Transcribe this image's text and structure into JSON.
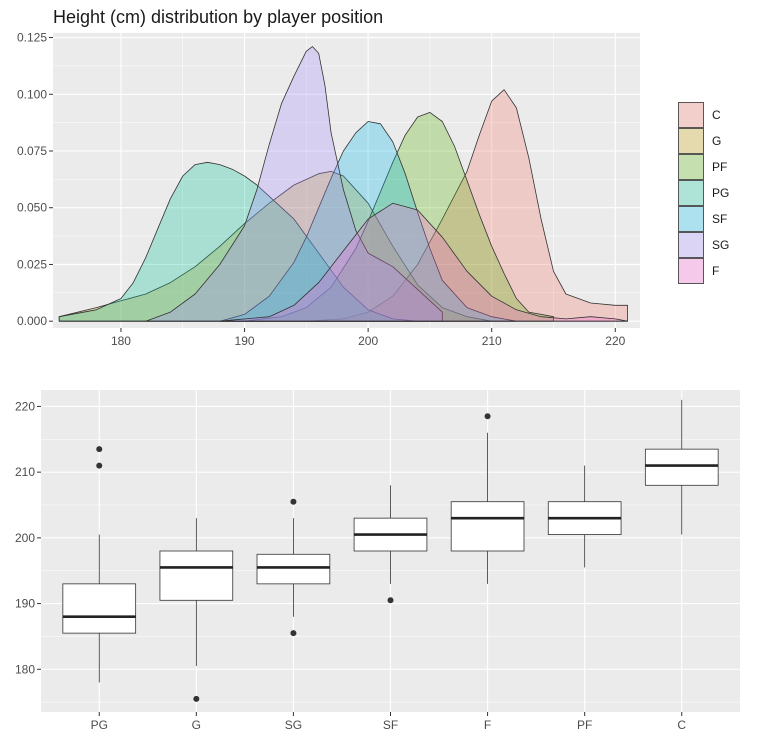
{
  "chart_data": [
    {
      "type": "area",
      "subtype": "density",
      "title": "Height (cm) distribution by player position",
      "xlabel": "",
      "ylabel": "",
      "xlim": [
        174.5,
        222
      ],
      "ylim": [
        -0.003,
        0.127
      ],
      "x_ticks": [
        180,
        190,
        200,
        210,
        220
      ],
      "y_ticks": [
        0.0,
        0.025,
        0.05,
        0.075,
        0.1,
        0.125
      ],
      "y_tick_labels": [
        "0.000",
        "0.025",
        "0.050",
        "0.075",
        "0.100",
        "0.125"
      ],
      "grid": true,
      "legend": "right",
      "fill_opacity": 0.28,
      "series": [
        {
          "name": "C",
          "color": "#F8766D",
          "x": [
            175,
            180,
            185,
            190,
            195,
            198,
            200,
            202,
            204,
            206,
            208,
            209,
            210,
            211,
            212,
            213,
            214,
            215,
            216,
            218,
            220,
            221
          ],
          "y": [
            0,
            0,
            0,
            0,
            0,
            0.001,
            0.004,
            0.011,
            0.025,
            0.045,
            0.066,
            0.082,
            0.097,
            0.102,
            0.094,
            0.072,
            0.045,
            0.022,
            0.012,
            0.008,
            0.007,
            0.007
          ]
        },
        {
          "name": "G",
          "color": "#C49A00",
          "x": [
            175,
            178,
            180,
            182,
            184,
            186,
            188,
            190,
            192,
            194,
            196,
            197,
            198,
            200,
            202,
            204,
            206,
            208,
            210
          ],
          "y": [
            0.002,
            0.006,
            0.009,
            0.012,
            0.017,
            0.024,
            0.033,
            0.043,
            0.052,
            0.06,
            0.065,
            0.066,
            0.064,
            0.052,
            0.033,
            0.016,
            0.006,
            0.002,
            0
          ]
        },
        {
          "name": "PF",
          "color": "#53B400",
          "x": [
            190,
            193,
            195,
            197,
            199,
            200,
            201,
            202,
            203,
            204,
            205,
            206,
            207,
            208,
            209,
            210,
            211,
            212,
            213,
            215
          ],
          "y": [
            0,
            0.002,
            0.006,
            0.015,
            0.032,
            0.044,
            0.057,
            0.07,
            0.082,
            0.09,
            0.092,
            0.088,
            0.077,
            0.062,
            0.047,
            0.033,
            0.021,
            0.01,
            0.004,
            0.002
          ]
        },
        {
          "name": "PG",
          "color": "#00C094",
          "x": [
            175,
            178,
            180,
            181,
            182,
            183,
            184,
            185,
            186,
            187,
            188,
            189,
            190,
            191,
            192,
            194,
            196,
            198,
            200,
            202,
            204
          ],
          "y": [
            0.002,
            0.005,
            0.01,
            0.017,
            0.028,
            0.041,
            0.054,
            0.064,
            0.069,
            0.07,
            0.069,
            0.067,
            0.064,
            0.06,
            0.055,
            0.045,
            0.03,
            0.015,
            0.005,
            0.001,
            0
          ]
        },
        {
          "name": "SF",
          "color": "#00B6EB",
          "x": [
            188,
            190,
            192,
            194,
            195,
            196,
            197,
            198,
            199,
            200,
            201,
            202,
            203,
            204,
            205,
            206,
            208,
            210,
            212
          ],
          "y": [
            0,
            0.003,
            0.011,
            0.026,
            0.037,
            0.05,
            0.063,
            0.075,
            0.083,
            0.088,
            0.087,
            0.079,
            0.065,
            0.048,
            0.032,
            0.018,
            0.006,
            0.002,
            0
          ]
        },
        {
          "name": "SG",
          "color": "#A58AFF",
          "x": [
            182,
            184,
            186,
            188,
            190,
            191,
            192,
            193,
            194,
            195,
            195.5,
            196,
            196.5,
            197,
            198,
            199,
            200,
            202,
            204,
            206
          ],
          "y": [
            0,
            0.004,
            0.012,
            0.025,
            0.042,
            0.058,
            0.078,
            0.096,
            0.108,
            0.119,
            0.121,
            0.118,
            0.104,
            0.083,
            0.058,
            0.04,
            0.03,
            0.024,
            0.014,
            0.004
          ]
        },
        {
          "name": "F",
          "color": "#FB61D7",
          "x": [
            188,
            192,
            194,
            196,
            198,
            200,
            202,
            204,
            206,
            208,
            210,
            212,
            214,
            216,
            218,
            220,
            221
          ],
          "y": [
            0,
            0.002,
            0.007,
            0.017,
            0.031,
            0.045,
            0.052,
            0.049,
            0.037,
            0.022,
            0.011,
            0.005,
            0.002,
            0.001,
            0.002,
            0.001,
            0
          ]
        }
      ]
    },
    {
      "type": "box",
      "title": "",
      "xlabel": "",
      "ylabel": "",
      "ylim": [
        173.5,
        222.5
      ],
      "y_ticks": [
        180,
        190,
        200,
        210,
        220
      ],
      "grid": true,
      "categories": [
        "PG",
        "G",
        "SG",
        "SF",
        "F",
        "PF",
        "C"
      ],
      "boxes": [
        {
          "category": "PG",
          "whisker_low": 178,
          "q1": 185.5,
          "median": 188,
          "q3": 193,
          "whisker_high": 200.5,
          "outliers": [
            211,
            213.5
          ]
        },
        {
          "category": "G",
          "whisker_low": 180.5,
          "q1": 190.5,
          "median": 195.5,
          "q3": 198,
          "whisker_high": 203,
          "outliers": [
            175.5
          ]
        },
        {
          "category": "SG",
          "whisker_low": 188,
          "q1": 193,
          "median": 195.5,
          "q3": 197.5,
          "whisker_high": 203,
          "outliers": [
            185.5,
            205.5
          ]
        },
        {
          "category": "SF",
          "whisker_low": 193,
          "q1": 198,
          "median": 200.5,
          "q3": 203,
          "whisker_high": 208,
          "outliers": [
            190.5
          ]
        },
        {
          "category": "F",
          "whisker_low": 193,
          "q1": 198,
          "median": 203,
          "q3": 205.5,
          "whisker_high": 216,
          "outliers": [
            218.5
          ]
        },
        {
          "category": "PF",
          "whisker_low": 195.5,
          "q1": 200.5,
          "median": 203,
          "q3": 205.5,
          "whisker_high": 211,
          "outliers": []
        },
        {
          "category": "C",
          "whisker_low": 200.5,
          "q1": 208,
          "median": 211,
          "q3": 213.5,
          "whisker_high": 221,
          "outliers": []
        }
      ]
    }
  ]
}
